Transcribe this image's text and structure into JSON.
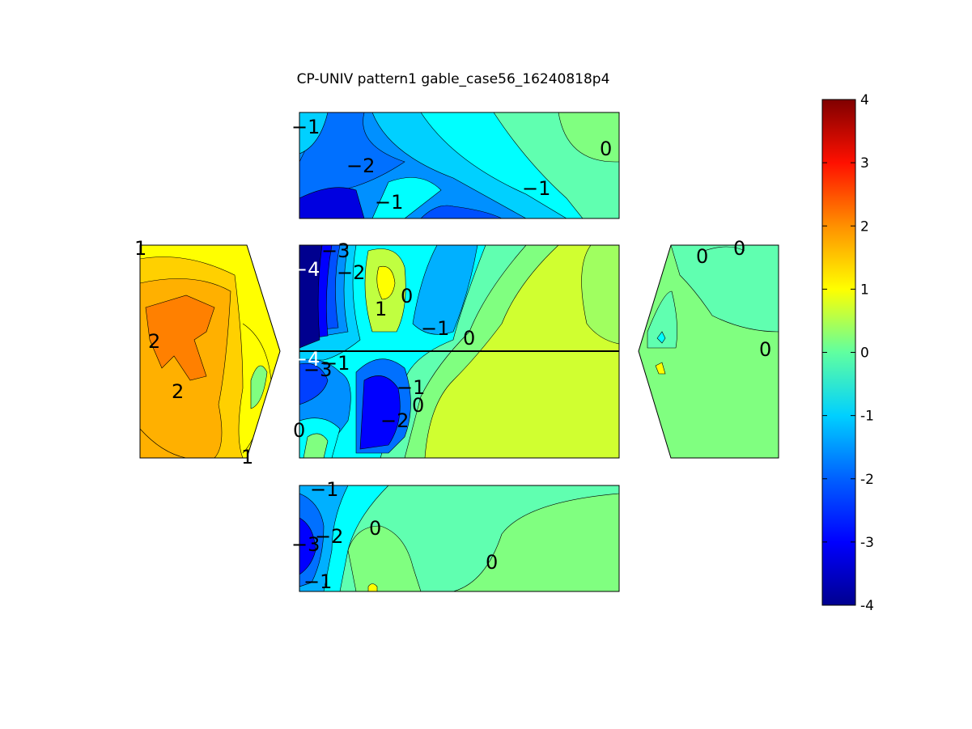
{
  "chart_data": {
    "type": "heatmap",
    "subtype": "filled-contour",
    "title": "CP-UNIV pattern1 gable_case56_16240818p4",
    "xlabel": "",
    "ylabel": "",
    "colormap": "jet",
    "colorbar": {
      "min": -4,
      "max": 4,
      "ticks": [
        "-4",
        "-3",
        "-2",
        "-1",
        "0",
        "1",
        "2",
        "3",
        "4"
      ],
      "stops": [
        "#00008f",
        "#0000ff",
        "#0080ff",
        "#00ffff",
        "#80ff80",
        "#ffff00",
        "#ff8000",
        "#ff0000",
        "#800000"
      ]
    },
    "panels": [
      {
        "id": "top-roof",
        "contour_labels": [
          "-1",
          "-2",
          "-1",
          "-1",
          "0"
        ]
      },
      {
        "id": "left-gable",
        "contour_labels": [
          "1",
          "2",
          "2",
          "1"
        ]
      },
      {
        "id": "center-upper",
        "contour_labels": [
          "-4",
          "-3",
          "-2",
          "1",
          "0",
          "-1",
          "0"
        ]
      },
      {
        "id": "center-lower",
        "contour_labels": [
          "-4",
          "-1",
          "-3",
          "-1",
          "0",
          "-2",
          "0"
        ]
      },
      {
        "id": "right-gable",
        "contour_labels": [
          "0",
          "0",
          "0"
        ]
      },
      {
        "id": "bottom-roof",
        "contour_labels": [
          "-1",
          "-3",
          "-2",
          "0",
          "-1",
          "0"
        ]
      }
    ]
  }
}
